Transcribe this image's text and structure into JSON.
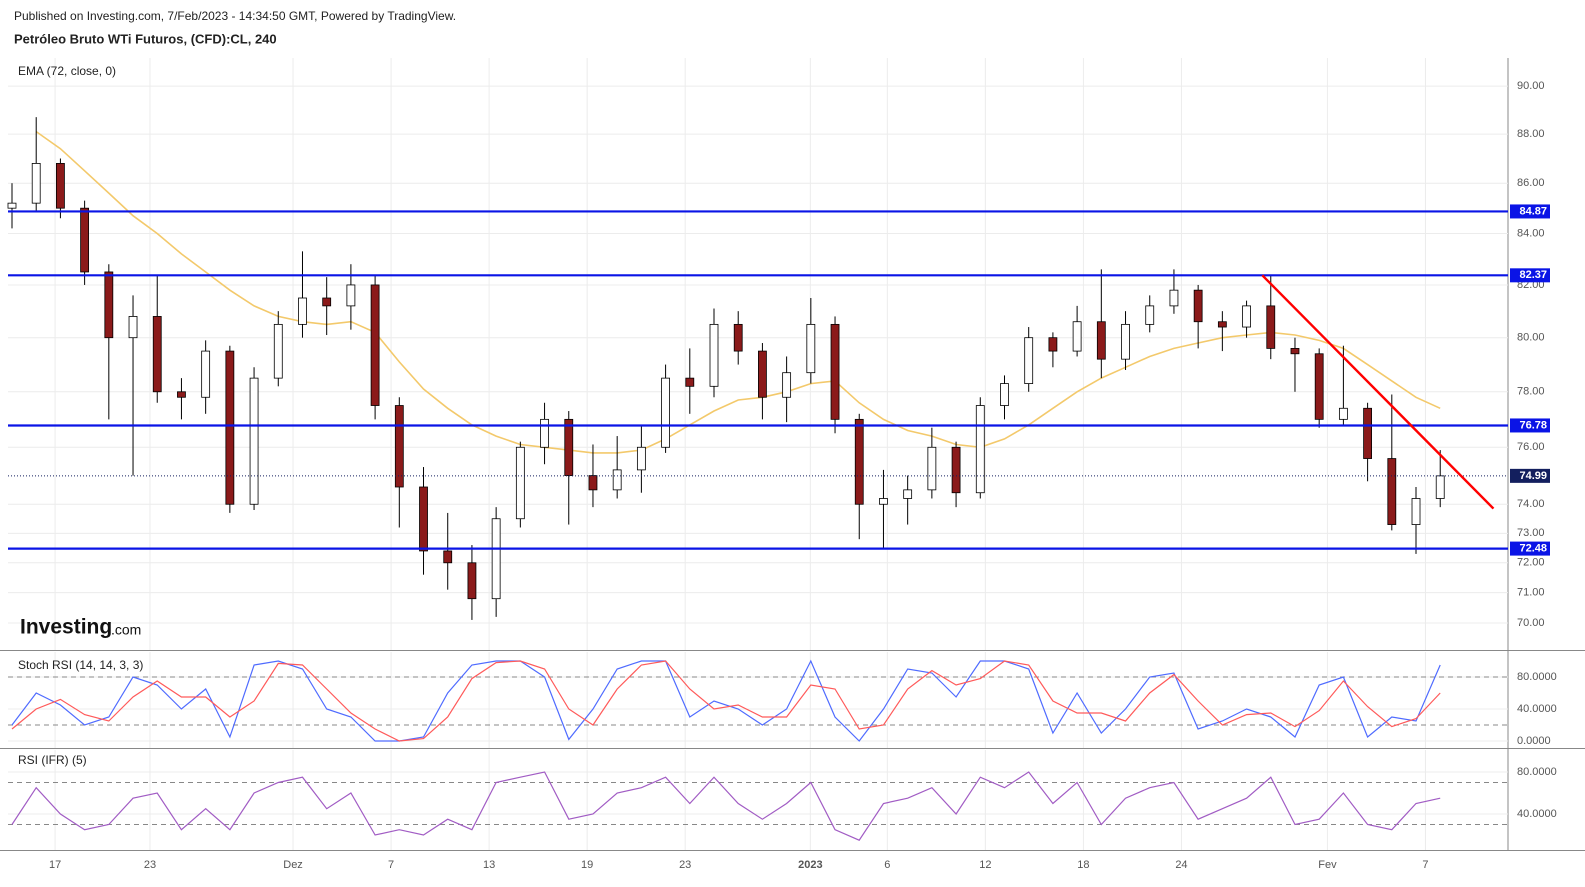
{
  "header": {
    "published": "Published on Investing.com, 7/Feb/2023 - 14:34:50 GMT, Powered by TradingView.",
    "instrument": "Petróleo Bruto WTi Futuros, (CFD):CL, 240",
    "logo": "Investing",
    "logo_suffix": ".com"
  },
  "chart_data": [
    {
      "type": "candlestick",
      "log_scale": true,
      "grid": true,
      "up_color": "#ffffff",
      "down_color": "#8b1a1a",
      "wick_color": "#000000",
      "xlim": [
        -0.165,
        61.8
      ],
      "ylim": [
        69.12,
        91.19
      ],
      "xticks": [
        {
          "value": 1.78,
          "label": "17"
        },
        {
          "value": 5.7,
          "label": "23"
        },
        {
          "value": 11.61,
          "label": "Dez"
        },
        {
          "value": 15.66,
          "label": "7"
        },
        {
          "value": 19.71,
          "label": "13"
        },
        {
          "value": 23.76,
          "label": "19"
        },
        {
          "value": 27.81,
          "label": "23"
        },
        {
          "value": 32.98,
          "label": "2023"
        },
        {
          "value": 36.16,
          "label": "6"
        },
        {
          "value": 40.21,
          "label": "12"
        },
        {
          "value": 44.26,
          "label": "18"
        },
        {
          "value": 48.31,
          "label": "24"
        },
        {
          "value": 54.34,
          "label": "Fev"
        },
        {
          "value": 58.39,
          "label": "7"
        }
      ],
      "yticks": [
        {
          "value": 90,
          "label": "90.00"
        },
        {
          "value": 88,
          "label": "88.00"
        },
        {
          "value": 86,
          "label": "86.00"
        },
        {
          "value": 84,
          "label": "84.00"
        },
        {
          "value": 82,
          "label": "82.00"
        },
        {
          "value": 80,
          "label": "80.00"
        },
        {
          "value": 78,
          "label": "78.00"
        },
        {
          "value": 76,
          "label": "76.00"
        },
        {
          "value": 74,
          "label": "74.00"
        },
        {
          "value": 73,
          "label": "73.00"
        },
        {
          "value": 72,
          "label": "72.00"
        },
        {
          "value": 71,
          "label": "71.00"
        },
        {
          "value": 70,
          "label": "70.00"
        }
      ],
      "open": [
        85.0,
        85.2,
        86.8,
        85.0,
        82.5,
        80.0,
        80.8,
        78.0,
        77.8,
        79.5,
        74.0,
        78.5,
        80.5,
        81.5,
        81.2,
        82.0,
        77.5,
        74.6,
        72.4,
        72.0,
        70.8,
        73.5,
        76.0,
        77.0,
        75.0,
        74.5,
        75.2,
        76.0,
        78.5,
        78.2,
        80.5,
        79.5,
        77.8,
        78.7,
        80.5,
        77.0,
        74.0,
        74.2,
        74.5,
        76.0,
        74.4,
        77.5,
        78.3,
        80.0,
        79.5,
        80.6,
        79.2,
        80.5,
        81.2,
        81.8,
        80.6,
        80.4,
        81.2,
        79.6,
        79.4,
        77.0,
        77.4,
        75.6,
        73.3,
        74.2
      ],
      "high": [
        86.0,
        88.7,
        87.0,
        85.3,
        82.8,
        81.6,
        82.4,
        78.5,
        79.9,
        79.7,
        78.9,
        81.0,
        83.3,
        82.3,
        82.8,
        82.4,
        77.8,
        75.3,
        73.7,
        72.6,
        73.9,
        76.2,
        77.6,
        77.3,
        76.1,
        76.4,
        76.8,
        79.0,
        79.6,
        81.1,
        81.0,
        79.8,
        79.3,
        81.5,
        80.8,
        77.2,
        75.2,
        75.0,
        76.7,
        76.2,
        77.8,
        78.6,
        80.4,
        80.2,
        81.2,
        82.6,
        81.0,
        81.6,
        82.6,
        82.0,
        81.0,
        81.4,
        82.4,
        80.0,
        79.6,
        79.7,
        77.6,
        77.9,
        74.6,
        75.9
      ],
      "low": [
        84.2,
        84.9,
        84.6,
        82.0,
        77.0,
        75.0,
        77.6,
        77.0,
        77.2,
        73.7,
        73.8,
        78.2,
        80.0,
        80.1,
        80.3,
        77.0,
        73.2,
        71.6,
        71.1,
        70.1,
        70.2,
        73.2,
        75.4,
        73.3,
        73.9,
        74.2,
        74.4,
        75.8,
        77.2,
        77.8,
        79.0,
        77.0,
        76.9,
        78.3,
        76.5,
        72.8,
        72.5,
        73.3,
        74.2,
        73.9,
        74.2,
        77.0,
        78.0,
        78.9,
        79.3,
        78.5,
        78.8,
        80.2,
        80.9,
        79.6,
        79.5,
        80.0,
        79.2,
        78.0,
        76.7,
        76.8,
        74.8,
        73.1,
        72.3,
        73.9
      ],
      "close": [
        85.2,
        86.8,
        85.0,
        82.5,
        80.0,
        80.8,
        78.0,
        77.8,
        79.5,
        74.0,
        78.5,
        80.5,
        81.5,
        81.2,
        82.0,
        77.5,
        74.6,
        72.4,
        72.0,
        70.8,
        73.5,
        76.0,
        77.0,
        75.0,
        74.5,
        75.2,
        76.0,
        78.5,
        78.2,
        80.5,
        79.5,
        77.8,
        78.7,
        80.5,
        77.0,
        74.0,
        74.2,
        74.5,
        76.0,
        74.4,
        77.5,
        78.3,
        80.0,
        79.5,
        80.6,
        79.2,
        80.5,
        81.2,
        81.8,
        80.6,
        80.4,
        81.2,
        79.6,
        79.4,
        77.0,
        77.4,
        75.6,
        73.3,
        74.2,
        74.99
      ],
      "indicator": {
        "label": "EMA (72, close, 0)",
        "color": "#f3c96b",
        "values": [
          null,
          88.1,
          87.4,
          86.5,
          85.6,
          84.7,
          84.0,
          83.2,
          82.5,
          81.8,
          81.2,
          80.8,
          80.6,
          80.5,
          80.6,
          80.2,
          79.1,
          78.1,
          77.4,
          76.8,
          76.4,
          76.1,
          76.0,
          75.9,
          75.8,
          75.8,
          75.9,
          76.3,
          76.8,
          77.3,
          77.7,
          77.8,
          78.0,
          78.3,
          78.4,
          77.6,
          77.0,
          76.6,
          76.4,
          76.1,
          76.0,
          76.3,
          76.8,
          77.4,
          78.0,
          78.5,
          78.9,
          79.3,
          79.6,
          79.8,
          80.0,
          80.1,
          80.2,
          80.1,
          79.9,
          79.6,
          79.0,
          78.4,
          77.8,
          77.4
        ]
      },
      "level_color": "#0a14e6",
      "levels": [
        84.87,
        82.37,
        76.78,
        72.48
      ],
      "last_price": 74.99,
      "last_price_color": "#131f5e",
      "trendline": {
        "color": "#ff0000",
        "x": [
          51.65,
          61.2
        ],
        "y": [
          82.37,
          73.85
        ]
      }
    },
    {
      "type": "line",
      "title": "Stoch RSI (14, 14, 3, 3)",
      "ylim": [
        -8.75,
        111.25
      ],
      "yticks": [
        {
          "value": 80,
          "label": "80.0000"
        },
        {
          "value": 40,
          "label": "40.0000"
        },
        {
          "value": 0,
          "label": "0.0000"
        }
      ],
      "bands": [
        80,
        20
      ],
      "series": [
        {
          "color": "#4f6bff",
          "values": [
            20,
            60,
            45,
            20,
            30,
            80,
            70,
            40,
            65,
            5,
            95,
            100,
            90,
            40,
            30,
            0,
            0,
            5,
            60,
            95,
            100,
            100,
            80,
            2,
            40,
            90,
            100,
            100,
            30,
            50,
            40,
            20,
            40,
            100,
            30,
            0,
            40,
            90,
            85,
            55,
            100,
            100,
            90,
            10,
            60,
            10,
            40,
            80,
            85,
            15,
            25,
            40,
            30,
            5,
            70,
            80,
            5,
            30,
            25,
            95
          ]
        },
        {
          "color": "#ff5a5a",
          "values": [
            15,
            40,
            52,
            33,
            25,
            55,
            75,
            55,
            55,
            30,
            50,
            97,
            95,
            65,
            35,
            15,
            0,
            3,
            30,
            78,
            98,
            100,
            90,
            40,
            20,
            65,
            95,
            100,
            65,
            40,
            45,
            30,
            30,
            70,
            65,
            15,
            20,
            65,
            88,
            70,
            78,
            100,
            95,
            50,
            35,
            35,
            25,
            60,
            83,
            50,
            20,
            33,
            35,
            18,
            38,
            75,
            43,
            18,
            28,
            60
          ]
        }
      ]
    },
    {
      "type": "line",
      "title": "RSI (IFR) (5)",
      "ylim": [
        5.7,
        100.9
      ],
      "yticks": [
        {
          "value": 80,
          "label": "80.0000"
        },
        {
          "value": 40,
          "label": "40.0000"
        }
      ],
      "bands": [
        70,
        30
      ],
      "series": [
        {
          "color": "#a15cc4",
          "values": [
            30,
            65,
            40,
            25,
            30,
            55,
            60,
            25,
            45,
            25,
            60,
            70,
            75,
            45,
            60,
            20,
            25,
            20,
            35,
            25,
            70,
            75,
            80,
            35,
            40,
            60,
            65,
            75,
            50,
            75,
            50,
            35,
            50,
            70,
            25,
            15,
            50,
            55,
            65,
            40,
            75,
            65,
            80,
            50,
            70,
            30,
            55,
            65,
            70,
            35,
            45,
            55,
            75,
            30,
            35,
            60,
            30,
            25,
            50,
            55
          ]
        }
      ]
    }
  ]
}
